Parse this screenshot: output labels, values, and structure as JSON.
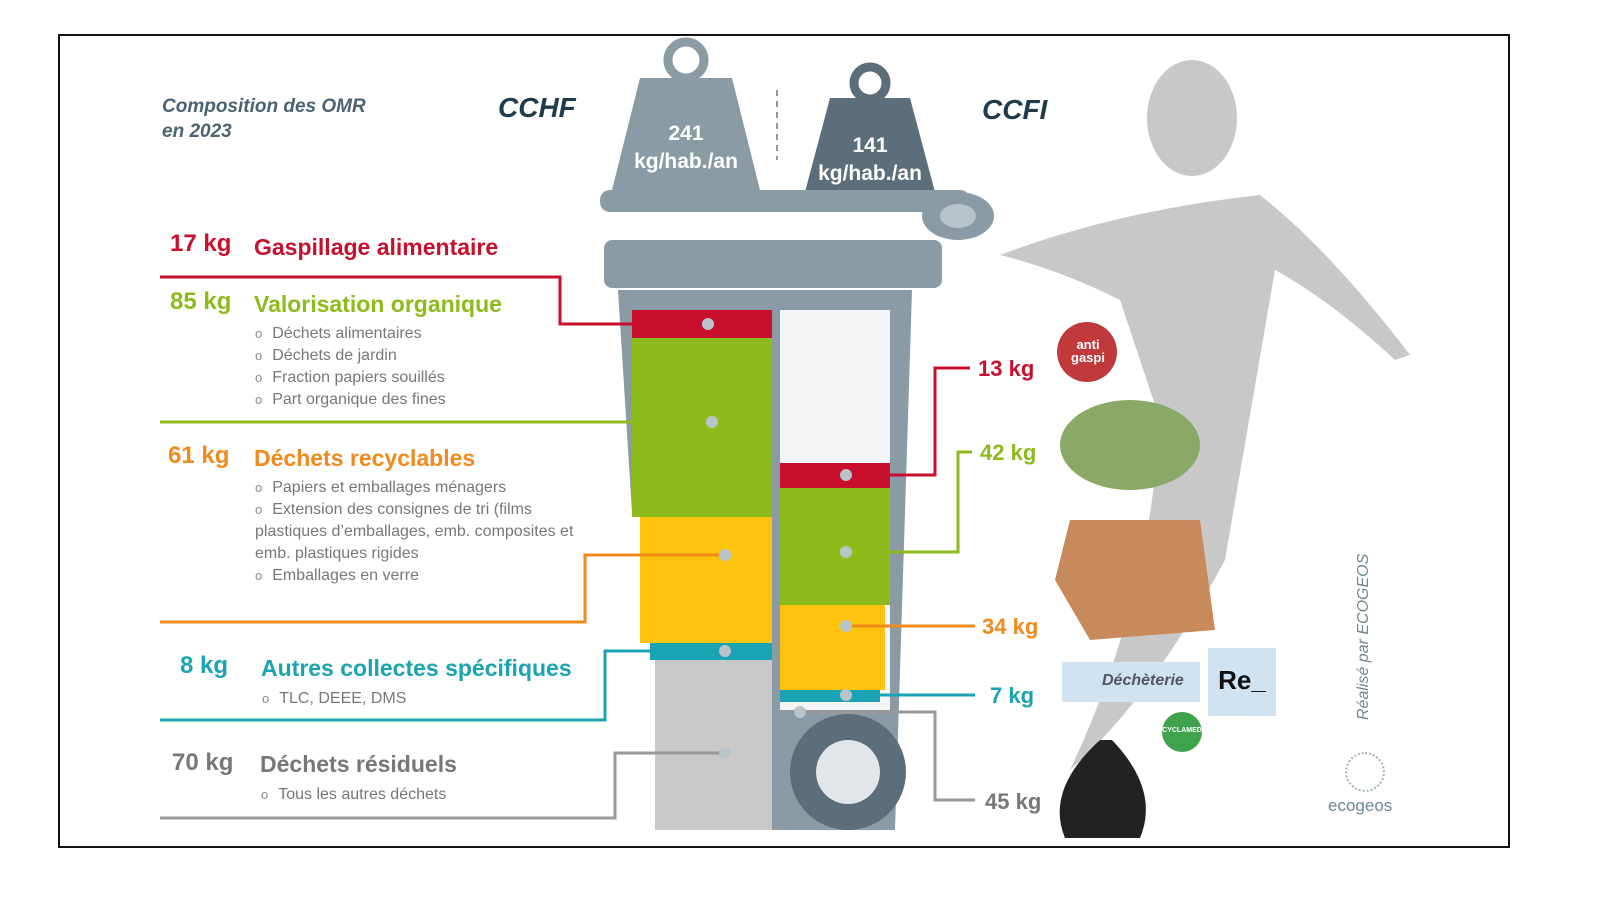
{
  "title": [
    "Composition des OMR",
    "en 2023"
  ],
  "columns": {
    "left": "CCHF",
    "right": "CCFI"
  },
  "weights": {
    "left": {
      "value": "241",
      "unit": "kg/hab./an"
    },
    "right": {
      "value": "141",
      "unit": "kg/hab./an"
    }
  },
  "colors": {
    "red": "#c8102e",
    "green": "#8dbb1c",
    "orange": "#f08a1c",
    "yellow": "#ffc20e",
    "teal": "#1aa3b2",
    "gray": "#777777",
    "bin": "#8b9ba5"
  },
  "categories": [
    {
      "kg_left": "17 kg",
      "name": "Gaspillage alimentaire",
      "kg_right": "13 kg",
      "items": []
    },
    {
      "kg_left": "85 kg",
      "name": "Valorisation organique",
      "kg_right": "42 kg",
      "items": [
        "Déchets alimentaires",
        "Déchets de jardin",
        "Fraction papiers souillés",
        "Part organique des fines"
      ]
    },
    {
      "kg_left": "61 kg",
      "name": "Déchets recyclables",
      "kg_right": "34 kg",
      "items": [
        "Papiers et emballages ménagers",
        "Extension des consignes de tri (films plastiques d’emballages, emb. composites et emb. plastiques rigides",
        "Emballages en verre"
      ]
    },
    {
      "kg_left": "8 kg",
      "name": "Autres collectes spécifiques",
      "kg_right": "7 kg",
      "items": [
        "TLC, DEEE, DMS"
      ]
    },
    {
      "kg_left": "70 kg",
      "name": "Déchets résiduels",
      "kg_right": "45 kg",
      "items": [
        "Tous les autres déchets"
      ]
    }
  ],
  "logos": {
    "antigaspi": "anti gaspi",
    "decheterie": "Déchèterie",
    "re": "Re_",
    "cyclamed": "CYCLAMED",
    "ecogeos": "ecogeos"
  },
  "credit": "Réalisé par ECOGEOS"
}
